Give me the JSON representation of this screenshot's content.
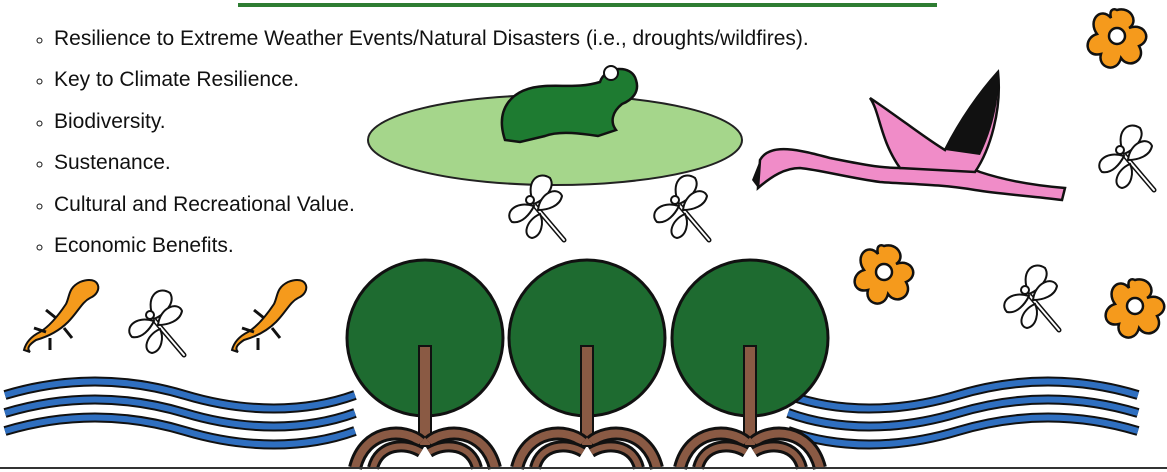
{
  "bullets": [
    "Resilience to Extreme Weather Events/Natural Disasters (i.e., droughts/wildfires).",
    "Key to Climate Resilience.",
    "Biodiversity.",
    "Sustenance.",
    "Cultural and Recreational Value.",
    "Economic Benefits."
  ]
}
